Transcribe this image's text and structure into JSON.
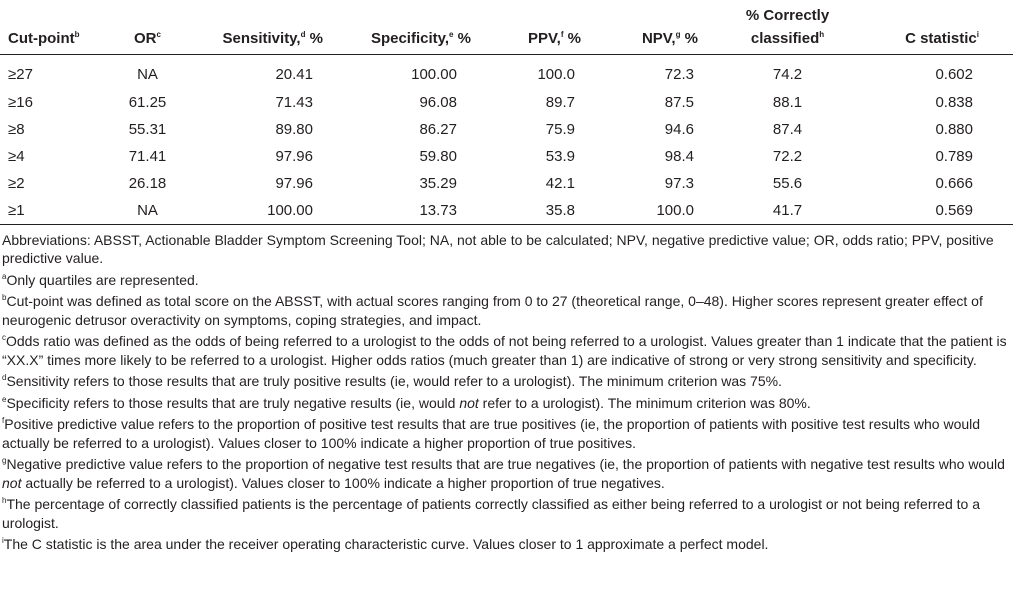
{
  "table": {
    "headers": [
      {
        "label": "Cut-point",
        "note": "b"
      },
      {
        "label": "OR",
        "note": "c"
      },
      {
        "label": "Sensitivity,",
        "note": "d",
        "unit": "%"
      },
      {
        "label": "Specificity,",
        "note": "e",
        "unit": "%"
      },
      {
        "label": "PPV,",
        "note": "f",
        "unit": "%"
      },
      {
        "label": "NPV,",
        "note": "g",
        "unit": "%"
      },
      {
        "label": "% Correctly classified",
        "note": "h"
      },
      {
        "label": "C statistic",
        "note": "i"
      }
    ],
    "rows": [
      [
        "≥27",
        "NA",
        "20.41",
        "100.00",
        "100.0",
        "72.3",
        "74.2",
        "0.602"
      ],
      [
        "≥16",
        "61.25",
        "71.43",
        "96.08",
        "89.7",
        "87.5",
        "88.1",
        "0.838"
      ],
      [
        "≥8",
        "55.31",
        "89.80",
        "86.27",
        "75.9",
        "94.6",
        "87.4",
        "0.880"
      ],
      [
        "≥4",
        "71.41",
        "97.96",
        "59.80",
        "53.9",
        "98.4",
        "72.2",
        "0.789"
      ],
      [
        "≥2",
        "26.18",
        "97.96",
        "35.29",
        "42.1",
        "97.3",
        "55.6",
        "0.666"
      ],
      [
        "≥1",
        "NA",
        "100.00",
        "13.73",
        "35.8",
        "100.0",
        "41.7",
        "0.569"
      ]
    ]
  },
  "footnotes": [
    {
      "parts": [
        {
          "text": "Abbreviations: ABSST, Actionable Bladder Symptom Screening Tool; NA, not able to be calculated; NPV, negative predictive value; OR, odds ratio; PPV, positive predictive value."
        }
      ]
    },
    {
      "mark": "a",
      "parts": [
        {
          "text": "Only quartiles are represented."
        }
      ]
    },
    {
      "mark": "b",
      "parts": [
        {
          "text": "Cut-point was defined as total score on the ABSST, with actual scores ranging from 0 to 27 (theoretical range, 0–48). Higher scores represent greater effect of neurogenic detrusor overactivity on symptoms, coping strategies, and impact."
        }
      ]
    },
    {
      "mark": "c",
      "parts": [
        {
          "text": "Odds ratio was defined as the odds of being referred to a urologist to the odds of not being referred to a urologist. Values greater than 1 indicate that the patient is “XX.X” times more likely to be referred to a urologist. Higher odds ratios (much greater than 1) are indicative of strong or very strong sensitivity and specificity."
        }
      ]
    },
    {
      "mark": "d",
      "parts": [
        {
          "text": "Sensitivity refers to those results that are truly positive results (ie, would refer to a urologist). The minimum criterion was 75%."
        }
      ]
    },
    {
      "mark": "e",
      "parts": [
        {
          "text": "Specificity refers to those results that are truly negative results (ie, would "
        },
        {
          "text": "not",
          "italic": true
        },
        {
          "text": " refer to a urologist). The minimum criterion was 80%."
        }
      ]
    },
    {
      "mark": "f",
      "parts": [
        {
          "text": "Positive predictive value refers to the proportion of positive test results that are true positives (ie, the proportion of patients with positive test results who would actually be referred to a urologist). Values closer to 100% indicate a higher proportion of true positives."
        }
      ]
    },
    {
      "mark": "g",
      "parts": [
        {
          "text": "Negative predictive value refers to the proportion of negative test results that are true negatives (ie, the proportion of patients with negative test results who would "
        },
        {
          "text": "not",
          "italic": true
        },
        {
          "text": " actually be referred to a urologist). Values closer to 100% indicate a higher proportion of true negatives."
        }
      ]
    },
    {
      "mark": "h",
      "parts": [
        {
          "text": "The percentage of correctly classified patients is the percentage of patients correctly classified as either being referred to a urologist or not being referred to a urologist."
        }
      ]
    },
    {
      "mark": "i",
      "parts": [
        {
          "text": "The C statistic is the area under the receiver operating characteristic curve. Values closer to 1 approximate a perfect model."
        }
      ]
    }
  ]
}
